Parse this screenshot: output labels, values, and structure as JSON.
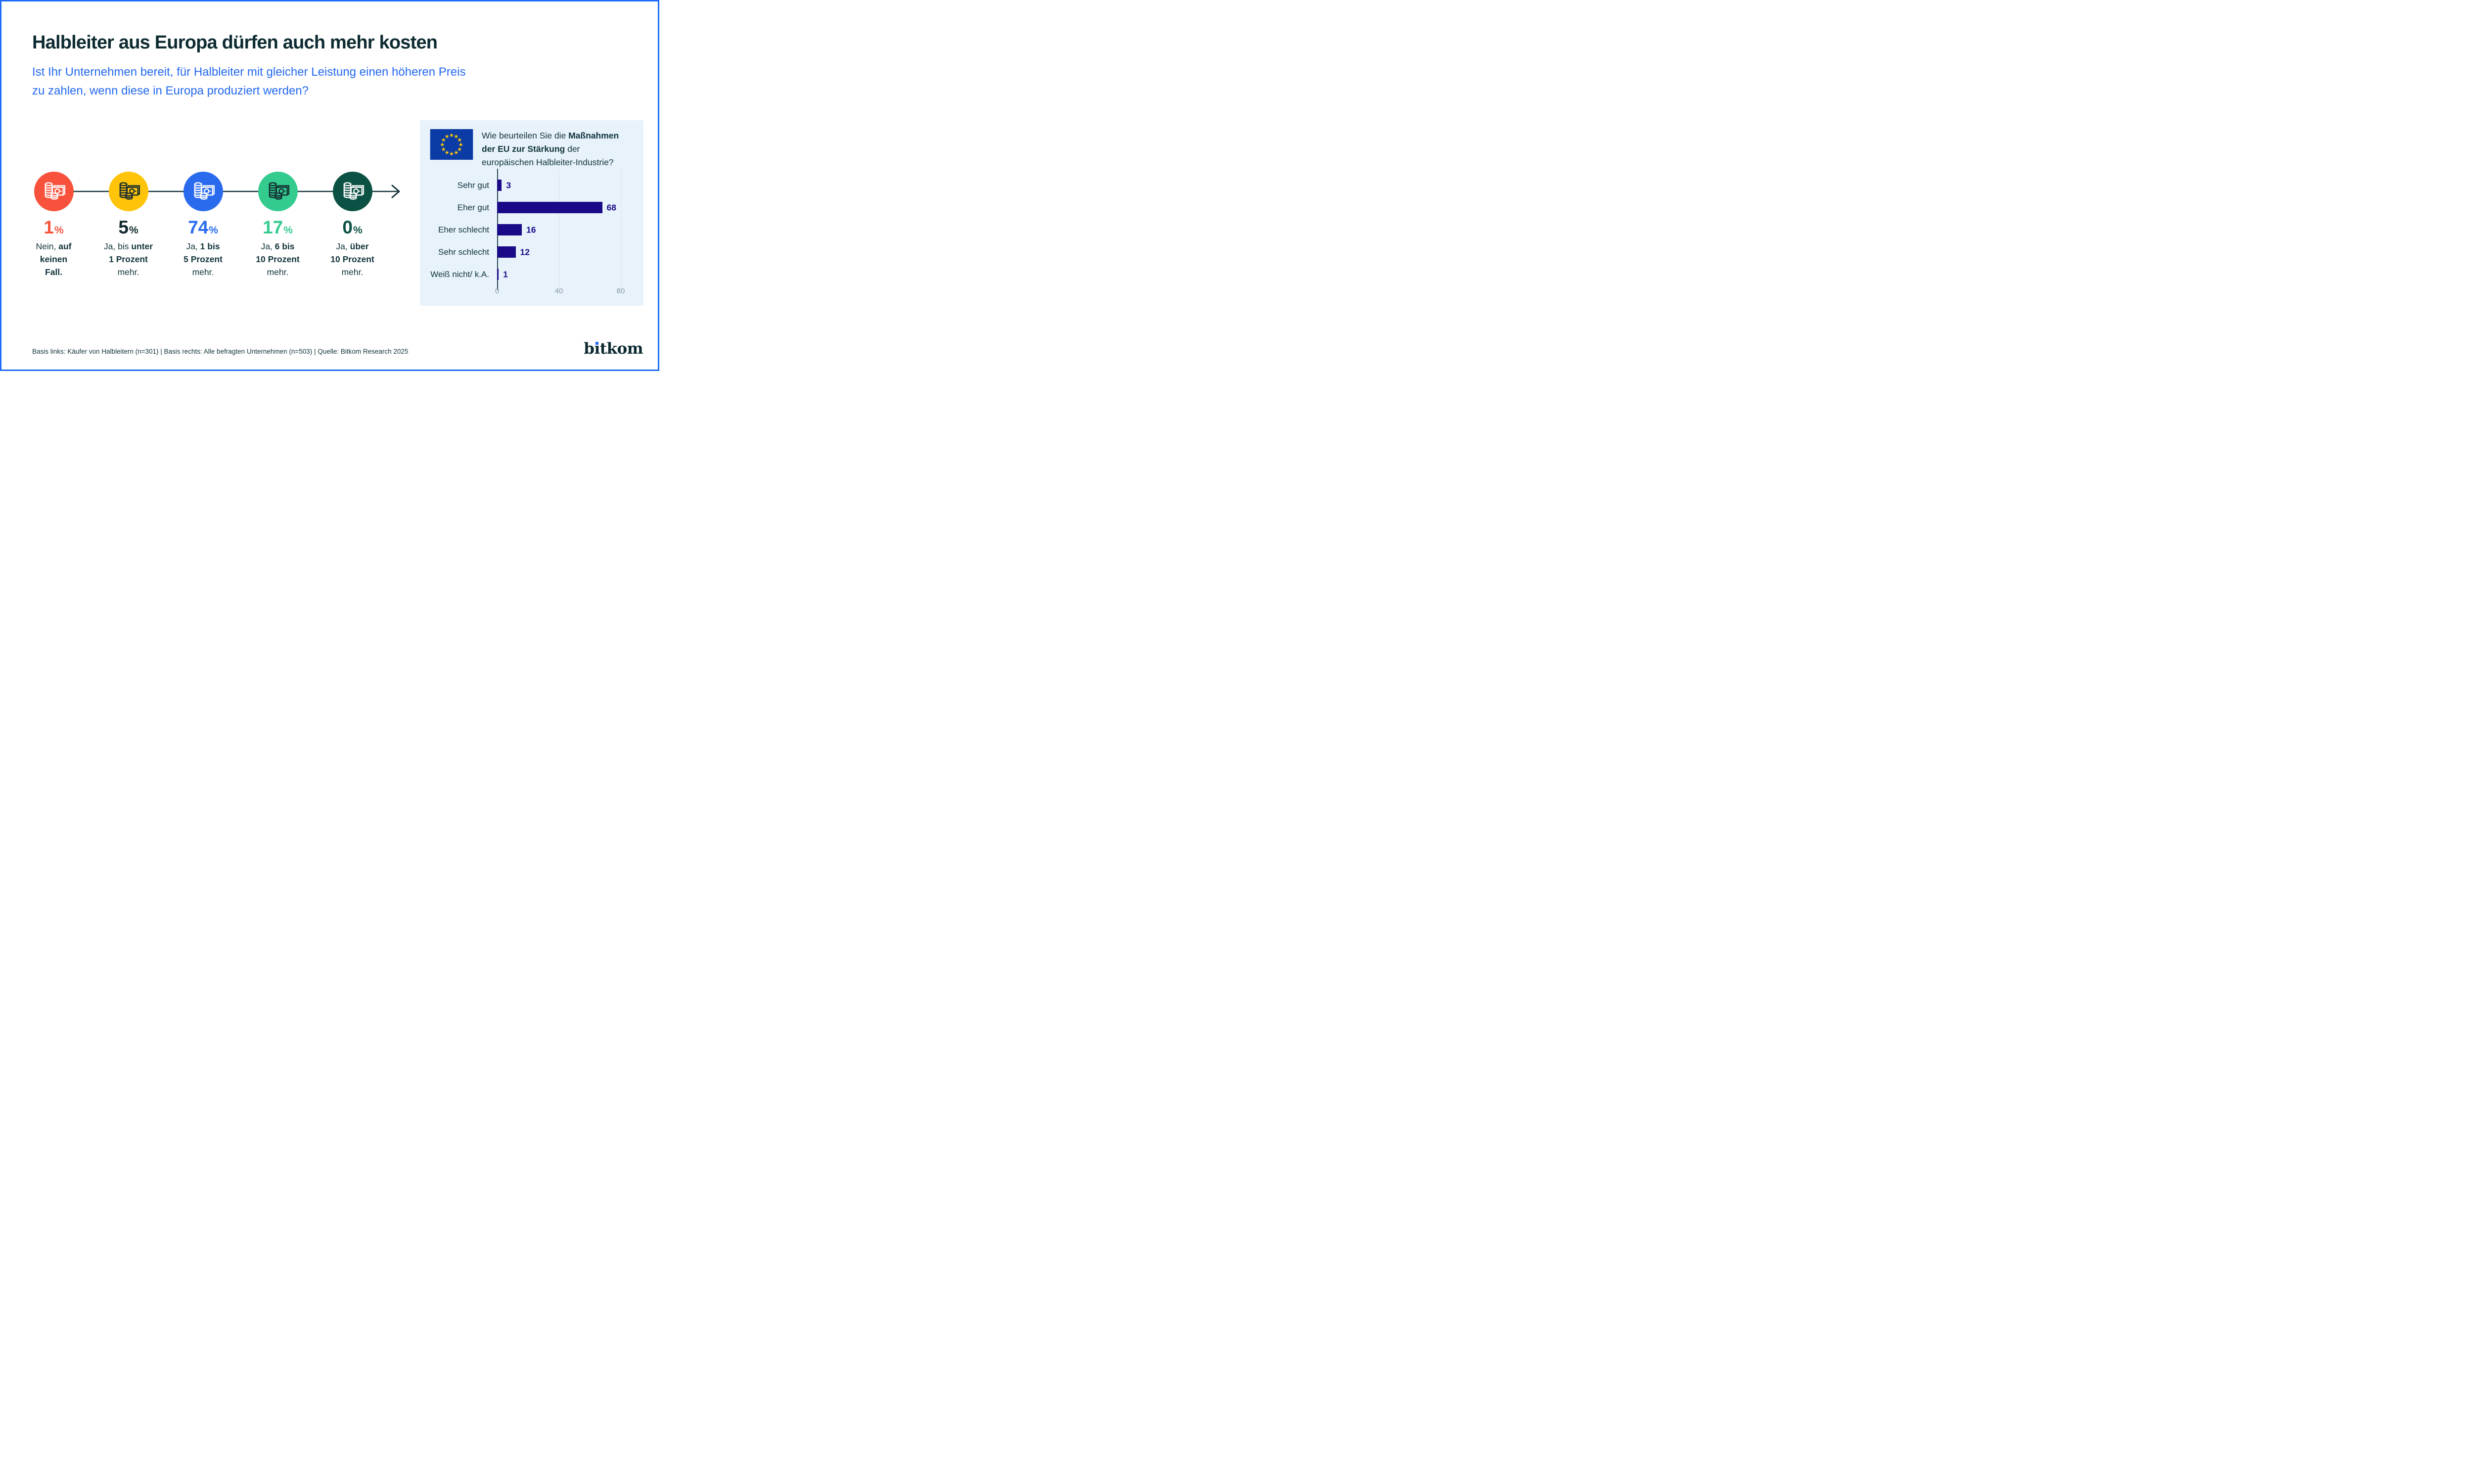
{
  "page": {
    "title": "Halbleiter aus Europa dürfen auch mehr kosten",
    "subtitle_lines": [
      "Ist Ihr Unternehmen bereit, für Halbleiter mit gleicher Leistung einen höheren Preis",
      "zu zahlen, wenn diese in Europa produziert werden?"
    ],
    "source": "Basis links: Käufer von Halbleitern (n=301) | Basis rechts: Alle befragten Unternehmen (n=503) | Quelle: Bitkom Research 2025",
    "brand": "bitkom",
    "border_color": "#1F6BF5",
    "accent_blue": "#2368F0",
    "text_dark": "#11333A"
  },
  "scale": {
    "items": [
      {
        "value": "1",
        "unit": "%",
        "circle_color": "#F8523C",
        "icon_color": "#FFFFFF",
        "value_color": "#F8523C",
        "label_lines": [
          [
            {
              "t": "Nein, ",
              "b": false
            },
            {
              "t": "auf",
              "b": true
            }
          ],
          [
            {
              "t": "keinen",
              "b": true
            }
          ],
          [
            {
              "t": "Fall.",
              "b": true
            }
          ]
        ]
      },
      {
        "value": "5",
        "unit": "%",
        "circle_color": "#FFC40A",
        "icon_color": "#12282E",
        "value_color": "#12282E",
        "label_lines": [
          [
            {
              "t": "Ja, bis ",
              "b": false
            },
            {
              "t": "unter",
              "b": true
            }
          ],
          [
            {
              "t": "1 Prozent",
              "b": true
            }
          ],
          [
            {
              "t": "mehr.",
              "b": false
            }
          ]
        ]
      },
      {
        "value": "74",
        "unit": "%",
        "circle_color": "#2A6BEE",
        "icon_color": "#FFFFFF",
        "value_color": "#2A6BEE",
        "label_lines": [
          [
            {
              "t": "Ja, ",
              "b": false
            },
            {
              "t": "1 bis",
              "b": true
            }
          ],
          [
            {
              "t": "5 Prozent",
              "b": true
            }
          ],
          [
            {
              "t": "mehr.",
              "b": false
            }
          ]
        ]
      },
      {
        "value": "17",
        "unit": "%",
        "circle_color": "#34CB8F",
        "icon_color": "#12282E",
        "value_color": "#34CB8F",
        "label_lines": [
          [
            {
              "t": "Ja, ",
              "b": false
            },
            {
              "t": "6 bis",
              "b": true
            }
          ],
          [
            {
              "t": "10 Prozent",
              "b": true
            }
          ],
          [
            {
              "t": "mehr.",
              "b": false
            }
          ]
        ]
      },
      {
        "value": "0",
        "unit": "%",
        "circle_color": "#0C5244",
        "icon_color": "#FFFFFF",
        "value_color": "#0C5244",
        "label_lines": [
          [
            {
              "t": "Ja, ",
              "b": false
            },
            {
              "t": "über",
              "b": true
            }
          ],
          [
            {
              "t": "10 Prozent",
              "b": true
            }
          ],
          [
            {
              "t": "mehr.",
              "b": false
            }
          ]
        ]
      }
    ]
  },
  "panel": {
    "bg": "#E7F2FB",
    "flag": "eu-flag",
    "question_lines": [
      [
        {
          "t": "Wie beurteilen Sie die ",
          "b": false
        },
        {
          "t": "Maßnahmen",
          "b": true
        }
      ],
      [
        {
          "t": "der EU zur Stärkung",
          "b": true
        },
        {
          "t": " der",
          "b": false
        }
      ],
      [
        {
          "t": "europäischen Halbleiter-Industrie?",
          "b": false
        }
      ]
    ]
  },
  "chart_data": [
    {
      "type": "pictogram-scale",
      "title": "Ist Ihr Unternehmen bereit, für Halbleiter mit gleicher Leistung einen höheren Preis zu zahlen, wenn diese in Europa produziert werden?",
      "categories": [
        "Nein, auf keinen Fall.",
        "Ja, bis unter 1 Prozent mehr.",
        "Ja, 1 bis 5 Prozent mehr.",
        "Ja, 6 bis 10 Prozent mehr.",
        "Ja, über 10 Prozent mehr."
      ],
      "values": [
        1,
        5,
        74,
        17,
        0
      ],
      "unit": "%",
      "colors": [
        "#F8523C",
        "#FFC40A",
        "#2A6BEE",
        "#34CB8F",
        "#0C5244"
      ]
    },
    {
      "type": "bar",
      "orientation": "horizontal",
      "title": "Wie beurteilen Sie die Maßnahmen der EU zur Stärkung der europäischen Halbleiter-Industrie?",
      "categories": [
        "Sehr gut",
        "Eher gut",
        "Eher schlecht",
        "Sehr schlecht",
        "Weiß nicht/ k.A."
      ],
      "values": [
        3,
        68,
        16,
        12,
        1
      ],
      "xlim": [
        0,
        80
      ],
      "xticks": [
        0,
        40,
        80
      ],
      "grid": true,
      "bar_color": "#1A0A87",
      "legend": false
    }
  ]
}
